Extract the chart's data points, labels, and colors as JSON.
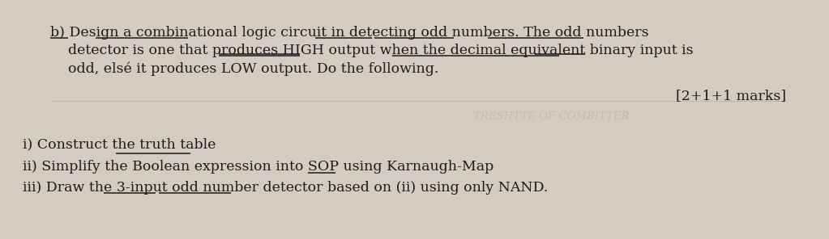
{
  "paper_color": "#d4ccc0",
  "text_color": "#1c1c1c",
  "line1": "b) Design a combinational logic circuit in detecting odd numbers. The odd numbers",
  "line2": "    detector is one that produces HIGH output when the decimal equivalent binary input is",
  "line3": "    odd, elsé it produces LOW output. Do the following.",
  "marks": "[2+1+1 marks]",
  "watermark": "TRESHTTE OF COMBITTER",
  "sub1": "i) Construct the truth table",
  "sub2": "ii) Simplify the Boolean expression into SOP using Karnaugh-Map",
  "sub3": "iii) Draw the 3-input odd number detector based on (ii) using only NAND.",
  "font_size_main": 12.5,
  "font_size_marks": 12.5,
  "font_size_watermark": 9.5
}
